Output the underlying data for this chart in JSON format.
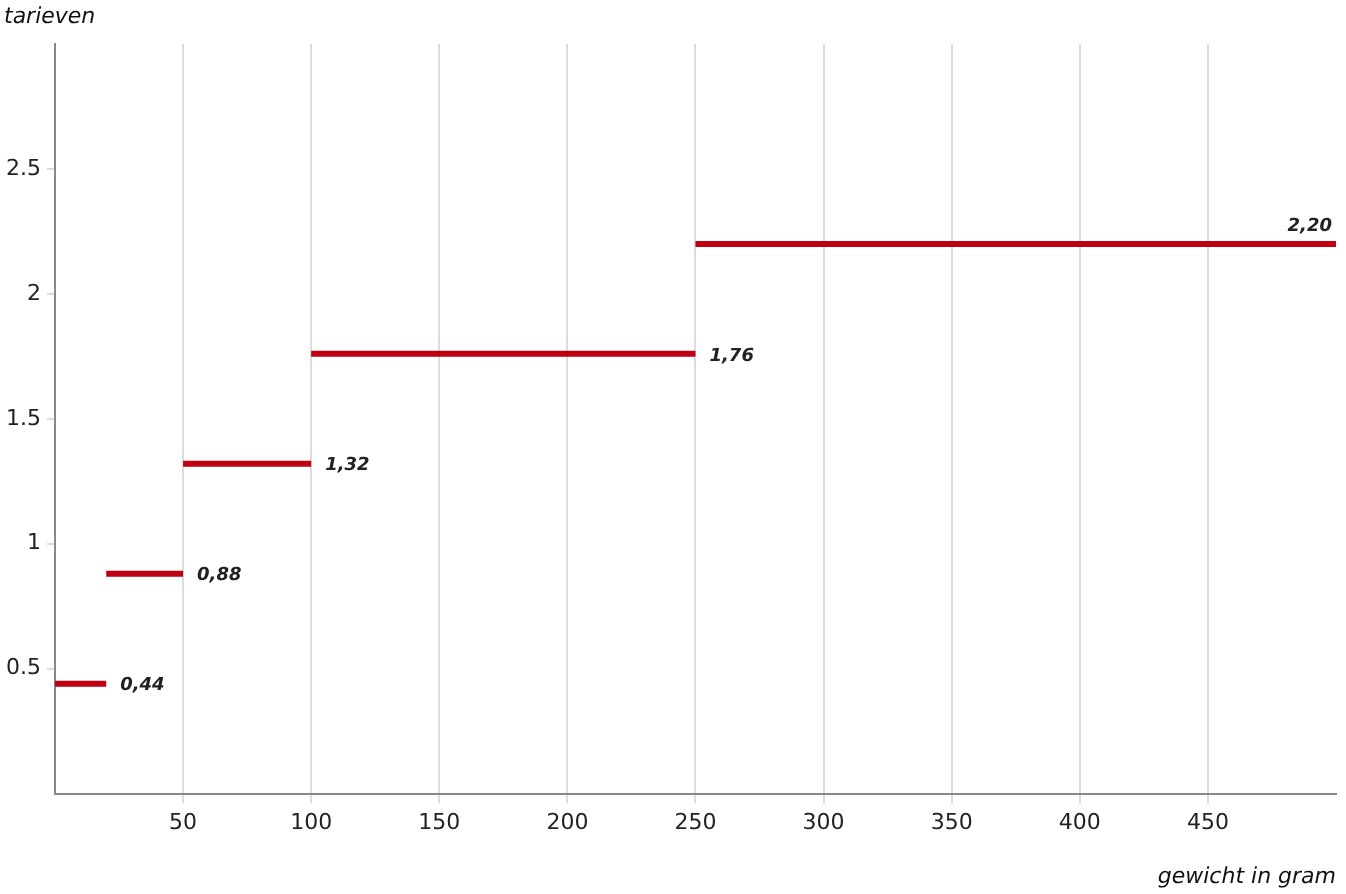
{
  "chart_data": {
    "type": "line",
    "xlabel": "gewicht in gram",
    "ylabel": "tarieven",
    "xlim": [
      0,
      500
    ],
    "xticks": [
      50,
      100,
      150,
      200,
      250,
      300,
      350,
      400,
      450
    ],
    "ylim": [
      0,
      3
    ],
    "yticks": [
      0.5,
      1,
      1.5,
      2,
      2.5
    ],
    "grid": "x",
    "legend": false,
    "series": [
      {
        "color": "#c00010",
        "x": [
          0,
          20
        ],
        "values": [
          0.44,
          0.44
        ],
        "value_labels": [
          null,
          "0,44"
        ]
      },
      {
        "color": "#c00010",
        "x": [
          20,
          50
        ],
        "values": [
          0.88,
          0.88
        ],
        "value_labels": [
          null,
          "0,88"
        ]
      },
      {
        "color": "#c00010",
        "x": [
          50,
          100
        ],
        "values": [
          1.32,
          1.32
        ],
        "value_labels": [
          null,
          "1,32"
        ]
      },
      {
        "color": "#c00010",
        "x": [
          100,
          250
        ],
        "values": [
          1.76,
          1.76
        ],
        "value_labels": [
          null,
          "1,76"
        ]
      },
      {
        "color": "#c00010",
        "x": [
          250,
          500
        ],
        "values": [
          2.2,
          2.2
        ],
        "value_labels": [
          null,
          "2,20"
        ]
      }
    ]
  }
}
